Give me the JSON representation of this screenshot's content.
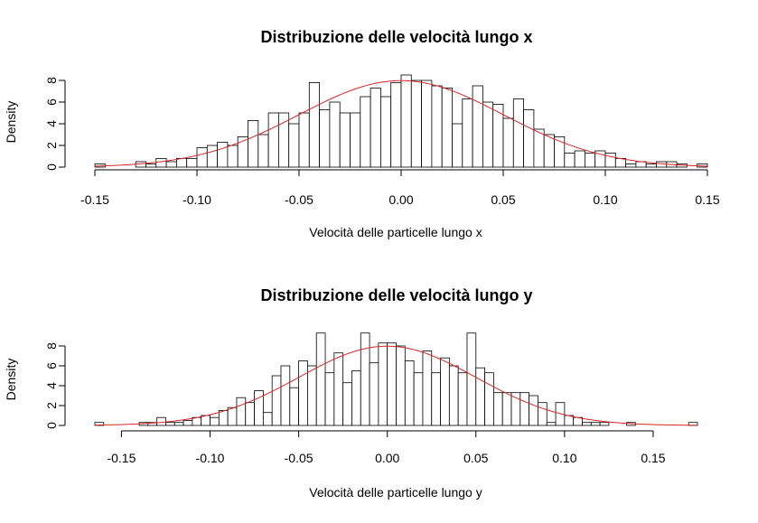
{
  "chart_data": [
    {
      "type": "bar",
      "title": "Distribuzione delle velocità lungo x",
      "xlabel": "Velocità delle particelle lungo x",
      "ylabel": "Density",
      "bin_start": -0.15,
      "bin_width": 0.005,
      "xlim": [
        -0.15,
        0.15
      ],
      "ylim": [
        0,
        8
      ],
      "x_ticks": [
        "-0.15",
        "-0.10",
        "-0.05",
        "0.00",
        "0.05",
        "0.10",
        "0.15"
      ],
      "y_ticks": [
        "0",
        "2",
        "4",
        "6",
        "8"
      ],
      "density": [
        0.3,
        0.0,
        0.0,
        0.0,
        0.5,
        0.3,
        0.8,
        0.5,
        0.8,
        0.8,
        1.8,
        2.0,
        2.3,
        2.0,
        2.8,
        4.3,
        3.0,
        5.0,
        5.0,
        4.0,
        5.0,
        7.8,
        5.3,
        6.0,
        5.0,
        5.0,
        6.5,
        7.3,
        6.5,
        7.8,
        8.5,
        8.0,
        8.0,
        7.5,
        7.3,
        4.0,
        6.3,
        7.5,
        6.0,
        5.8,
        4.5,
        6.3,
        5.3,
        3.5,
        3.0,
        2.8,
        1.3,
        1.5,
        1.3,
        1.5,
        1.3,
        0.8,
        0.3,
        0.5,
        0.3,
        0.5,
        0.5,
        0.3,
        0.0,
        0.3
      ],
      "normal_curve": {
        "mean": 0.0,
        "sd": 0.05,
        "color": "#d62728"
      }
    },
    {
      "type": "bar",
      "title": "Distribuzione delle velocità lungo y",
      "xlabel": "Velocità delle particelle lungo y",
      "ylabel": "Density",
      "bin_start": -0.165,
      "bin_width": 0.005,
      "xlim": [
        -0.165,
        0.175
      ],
      "ylim": [
        0,
        8
      ],
      "x_ticks": [
        "-0.15",
        "-0.10",
        "-0.05",
        "0.00",
        "0.05",
        "0.10",
        "0.15"
      ],
      "y_ticks": [
        "0",
        "2",
        "4",
        "6",
        "8"
      ],
      "density": [
        0.3,
        0.0,
        0.0,
        0.0,
        0.0,
        0.3,
        0.3,
        0.8,
        0.3,
        0.3,
        0.5,
        0.8,
        1.0,
        0.8,
        1.5,
        1.8,
        2.8,
        2.3,
        3.5,
        1.3,
        5.0,
        6.0,
        3.8,
        6.5,
        6.0,
        9.3,
        5.3,
        7.3,
        4.3,
        5.5,
        9.3,
        6.3,
        8.3,
        8.3,
        8.0,
        6.5,
        5.3,
        7.5,
        5.3,
        6.8,
        6.0,
        5.3,
        9.3,
        5.8,
        5.3,
        3.3,
        3.3,
        3.3,
        3.3,
        3.0,
        2.3,
        0.3,
        2.3,
        1.0,
        0.8,
        0.3,
        0.3,
        0.3,
        0.0,
        0.0,
        0.3,
        0.0,
        0.0,
        0.0,
        0.0,
        0.0,
        0.0,
        0.3
      ],
      "normal_curve": {
        "mean": 0.0,
        "sd": 0.05,
        "color": "#d62728"
      }
    }
  ]
}
